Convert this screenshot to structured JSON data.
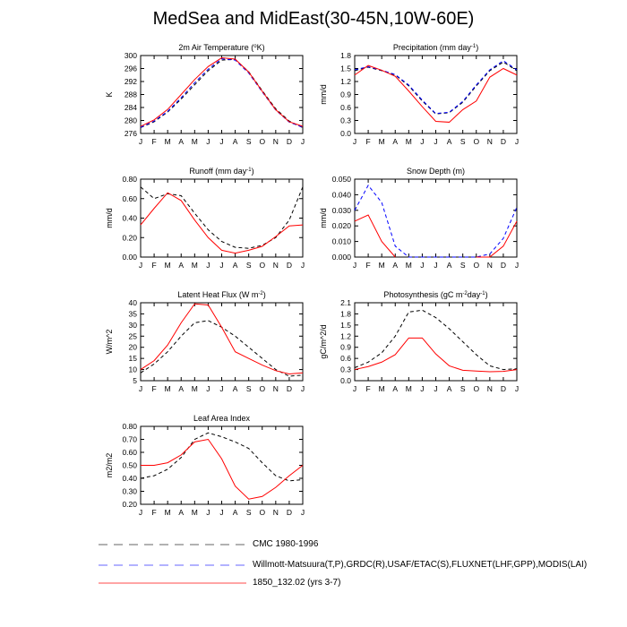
{
  "page_title": "MedSea and MidEast(30-45N,10W-60E)",
  "colors": {
    "cmc": "#000000",
    "obs": "#0000ff",
    "model": "#ff0000"
  },
  "legend": [
    {
      "label": "CMC 1980-1996",
      "color": "#000000",
      "dash": "dashed"
    },
    {
      "label": "Willmott-Matsuura(T,P),GRDC(R),USAF/ETAC(S),FLUXNET(LHF,GPP),MODIS(LAI)",
      "color": "#0000ff",
      "dash": "dashed"
    },
    {
      "label": "1850_132.02 (yrs 3-7)",
      "color": "#ff0000",
      "dash": "solid"
    }
  ],
  "chart_data": [
    {
      "id": "temp",
      "type": "line",
      "title": "2m Air Temperature (",
      "title_sup": "o",
      "title_tail": "K)",
      "ylabel": "K",
      "categories": [
        "J",
        "F",
        "M",
        "A",
        "M",
        "J",
        "J",
        "A",
        "S",
        "O",
        "N",
        "D",
        "J"
      ],
      "ylim": [
        276,
        300
      ],
      "yticks": [
        276,
        280,
        284,
        288,
        292,
        296,
        300
      ],
      "yticklabels": [
        "276",
        "280",
        "284",
        "288",
        "292",
        "296",
        "300"
      ],
      "series": [
        {
          "style": "cmc",
          "values": [
            277.8,
            279.6,
            282.6,
            286.6,
            291.0,
            295.3,
            298.6,
            298.8,
            295.0,
            289.2,
            283.6,
            279.8,
            277.8
          ]
        },
        {
          "style": "obs",
          "values": [
            277.9,
            279.8,
            282.8,
            287.0,
            291.6,
            295.8,
            299.0,
            298.6,
            294.6,
            288.8,
            283.2,
            279.5,
            277.9
          ]
        },
        {
          "style": "model",
          "values": [
            278.2,
            280.2,
            283.4,
            288.0,
            292.6,
            296.6,
            299.3,
            298.9,
            294.9,
            289.0,
            283.3,
            279.6,
            278.2
          ]
        }
      ]
    },
    {
      "id": "precip",
      "type": "line",
      "title": "Precipitation (mm day",
      "title_sup": "-1",
      "title_tail": ")",
      "ylabel": "mm/d",
      "categories": [
        "J",
        "F",
        "M",
        "A",
        "M",
        "J",
        "J",
        "A",
        "S",
        "O",
        "N",
        "D",
        "J"
      ],
      "ylim": [
        0.0,
        1.8
      ],
      "yticks": [
        0.0,
        0.3,
        0.6,
        0.9,
        1.2,
        1.5,
        1.8
      ],
      "yticklabels": [
        "0.0",
        "0.3",
        "0.6",
        "0.9",
        "1.2",
        "1.5",
        "1.8"
      ],
      "series": [
        {
          "style": "cmc",
          "values": [
            1.45,
            1.53,
            1.45,
            1.35,
            1.1,
            0.75,
            0.45,
            0.48,
            0.72,
            1.1,
            1.45,
            1.65,
            1.45
          ]
        },
        {
          "style": "obs",
          "values": [
            1.47,
            1.54,
            1.46,
            1.36,
            1.12,
            0.77,
            0.46,
            0.49,
            0.74,
            1.12,
            1.47,
            1.68,
            1.47
          ]
        },
        {
          "style": "model",
          "values": [
            1.35,
            1.57,
            1.46,
            1.32,
            0.98,
            0.62,
            0.28,
            0.26,
            0.55,
            0.75,
            1.3,
            1.5,
            1.35
          ]
        }
      ]
    },
    {
      "id": "runoff",
      "type": "line",
      "title": "Runoff (mm day",
      "title_sup": "-1",
      "title_tail": ")",
      "ylabel": "mm/d",
      "categories": [
        "J",
        "F",
        "M",
        "A",
        "M",
        "J",
        "J",
        "A",
        "S",
        "O",
        "N",
        "D",
        "J"
      ],
      "ylim": [
        0.0,
        0.8
      ],
      "yticks": [
        0.0,
        0.2,
        0.4,
        0.6,
        0.8
      ],
      "yticklabels": [
        "0.00",
        "0.20",
        "0.40",
        "0.60",
        "0.80"
      ],
      "series": [
        {
          "style": "cmc",
          "values": [
            0.72,
            0.6,
            0.65,
            0.63,
            0.45,
            0.28,
            0.16,
            0.1,
            0.09,
            0.12,
            0.2,
            0.38,
            0.72
          ]
        },
        {
          "style": "model",
          "values": [
            0.33,
            0.5,
            0.66,
            0.58,
            0.38,
            0.2,
            0.07,
            0.04,
            0.07,
            0.11,
            0.21,
            0.32,
            0.33
          ]
        }
      ]
    },
    {
      "id": "snow",
      "type": "line",
      "title": "Snow Depth (m)",
      "title_sup": "",
      "title_tail": "",
      "ylabel": "mm/d",
      "categories": [
        "J",
        "F",
        "M",
        "A",
        "M",
        "J",
        "J",
        "A",
        "S",
        "O",
        "N",
        "D",
        "J"
      ],
      "ylim": [
        0.0,
        0.05
      ],
      "yticks": [
        0.0,
        0.01,
        0.02,
        0.03,
        0.04,
        0.05
      ],
      "yticklabels": [
        "0.000",
        "0.010",
        "0.020",
        "0.030",
        "0.040",
        "0.050"
      ],
      "series": [
        {
          "style": "obs",
          "values": [
            0.03,
            0.046,
            0.035,
            0.007,
            0.0,
            0.0,
            0.0,
            0.0,
            0.0,
            0.0,
            0.002,
            0.012,
            0.032
          ]
        },
        {
          "style": "model",
          "values": [
            0.023,
            0.027,
            0.01,
            0.0,
            null,
            null,
            null,
            null,
            null,
            0.0,
            0.0,
            0.007,
            0.023
          ]
        }
      ]
    },
    {
      "id": "lhf",
      "type": "line",
      "title": "Latent Heat Flux (W m",
      "title_sup": "-2",
      "title_tail": ")",
      "ylabel": "W/m^2",
      "categories": [
        "J",
        "F",
        "M",
        "A",
        "M",
        "J",
        "J",
        "A",
        "S",
        "O",
        "N",
        "D",
        "J"
      ],
      "ylim": [
        5,
        40
      ],
      "yticks": [
        5,
        10,
        15,
        20,
        25,
        30,
        35,
        40
      ],
      "yticklabels": [
        "5",
        "10",
        "15",
        "20",
        "25",
        "30",
        "35",
        "40"
      ],
      "series": [
        {
          "style": "cmc",
          "values": [
            8.5,
            12.5,
            18.0,
            25.0,
            31.0,
            32.0,
            29.0,
            25.0,
            20.0,
            15.0,
            10.0,
            7.0,
            7.5
          ]
        },
        {
          "style": "model",
          "values": [
            10.0,
            14.0,
            21.0,
            31.0,
            39.5,
            39.0,
            29.0,
            18.0,
            15.0,
            12.0,
            9.5,
            8.0,
            8.5
          ]
        }
      ]
    },
    {
      "id": "gpp",
      "type": "line",
      "title": "Photosynthesis (gC m",
      "title_sup": "-2",
      "title_tail": "day",
      "title_sup2": "-1",
      "title_tail2": ")",
      "ylabel": "gC/m^2/d",
      "categories": [
        "J",
        "F",
        "M",
        "A",
        "M",
        "J",
        "J",
        "A",
        "S",
        "O",
        "N",
        "D",
        "J"
      ],
      "ylim": [
        0.0,
        2.1
      ],
      "yticks": [
        0.0,
        0.3,
        0.6,
        0.9,
        1.2,
        1.5,
        1.8,
        2.1
      ],
      "yticklabels": [
        "0.0",
        "0.3",
        "0.6",
        "0.9",
        "1.2",
        "1.5",
        "1.8",
        "2.1"
      ],
      "series": [
        {
          "style": "cmc",
          "values": [
            0.35,
            0.5,
            0.75,
            1.2,
            1.85,
            1.9,
            1.7,
            1.4,
            1.05,
            0.7,
            0.4,
            0.3,
            0.32
          ]
        },
        {
          "style": "model",
          "values": [
            0.3,
            0.38,
            0.5,
            0.7,
            1.15,
            1.15,
            0.72,
            0.4,
            0.28,
            0.26,
            0.24,
            0.25,
            0.3
          ]
        }
      ]
    },
    {
      "id": "lai",
      "type": "line",
      "title": "Leaf Area Index",
      "title_sup": "",
      "title_tail": "",
      "ylabel": "m2/m2",
      "categories": [
        "J",
        "F",
        "M",
        "A",
        "M",
        "J",
        "J",
        "A",
        "S",
        "O",
        "N",
        "D",
        "J"
      ],
      "ylim": [
        0.2,
        0.8
      ],
      "yticks": [
        0.2,
        0.3,
        0.4,
        0.5,
        0.6,
        0.7,
        0.8
      ],
      "yticklabels": [
        "0.20",
        "0.30",
        "0.40",
        "0.50",
        "0.60",
        "0.70",
        "0.80"
      ],
      "series": [
        {
          "style": "cmc",
          "values": [
            0.4,
            0.42,
            0.47,
            0.56,
            0.7,
            0.75,
            0.72,
            0.68,
            0.63,
            0.52,
            0.42,
            0.38,
            0.39
          ]
        },
        {
          "style": "model",
          "values": [
            0.5,
            0.5,
            0.52,
            0.58,
            0.68,
            0.7,
            0.55,
            0.34,
            0.24,
            0.26,
            0.33,
            0.42,
            0.5
          ]
        }
      ]
    }
  ]
}
